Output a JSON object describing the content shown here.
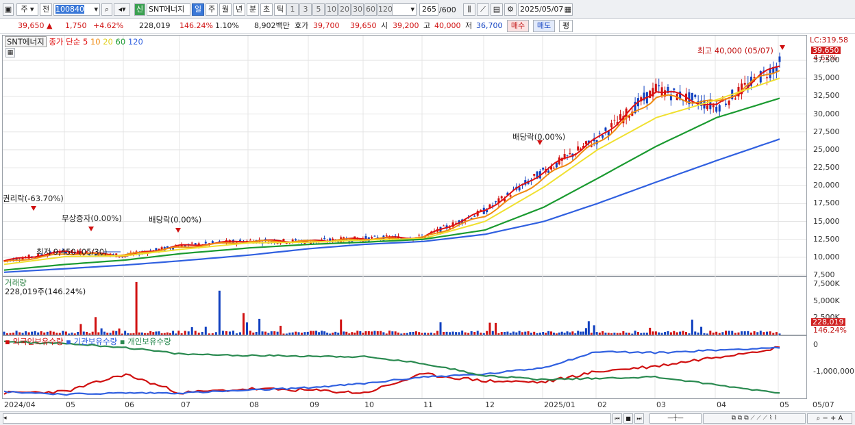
{
  "toolbar": {
    "market": "주",
    "prev": "전",
    "code": "100840",
    "badge": "신",
    "name": "SNT에너지",
    "periods": [
      "일",
      "주",
      "월",
      "년",
      "분",
      "초",
      "틱"
    ],
    "active_period": "일",
    "intervals": [
      "1",
      "3",
      "5",
      "10",
      "20",
      "30",
      "60",
      "120"
    ],
    "count": "265",
    "count_total": "/600",
    "date": "2025/05/07"
  },
  "quote": {
    "price": "39,650 ▲",
    "change": "1,750",
    "change_pct": "+4.62%",
    "volume": "228,019",
    "volume_pct": "146.24%",
    "turnover": "1.10%",
    "amount": "8,902백만",
    "hoga_label": "호가",
    "ask": "39,700",
    "bid": "39,650",
    "open_label": "시",
    "open": "39,200",
    "high_label": "고",
    "high": "40,000",
    "low_label": "저",
    "low": "36,700",
    "buy_btn": "매수",
    "sell_btn": "매도",
    "eval_btn": "평"
  },
  "price_panel": {
    "legend_name": "SNT에너지",
    "legend_ma": "종가 단순 5",
    "ma_periods": [
      "10",
      "20",
      "60",
      "120"
    ],
    "lc_label": "LC:319.58",
    "current_tag": "39,650",
    "pct_tag": "4.62%",
    "annotations": {
      "rights": "권리락(-63.70%)",
      "bonus": "무상증자(0.00%)",
      "div1": "배당락(0.00%)",
      "div2": "배당락(0.00%)",
      "high": "최고 40,000 (05/07)",
      "low": "최저 9,450 (05/30)"
    },
    "y_ticks": [
      "37,500",
      "35,000",
      "32,500",
      "30,000",
      "27,500",
      "25,000",
      "22,500",
      "20,000",
      "17,500",
      "15,000",
      "12,500",
      "10,000",
      "7,500"
    ]
  },
  "volume_panel": {
    "title": "거래량",
    "value": "228,019주(146.24%)",
    "y_ticks": [
      "7,500K",
      "5,000K",
      "2,500K"
    ],
    "tag": "228,019",
    "pct_tag": "146.24%"
  },
  "holdings_panel": {
    "legends": [
      "외국인보유수량",
      "기관보유수량",
      "개인보유수량"
    ],
    "y_ticks": [
      "0",
      "-1,000,000"
    ]
  },
  "x_ticks": [
    "2024/04",
    "05",
    "06",
    "07",
    "08",
    "09",
    "10",
    "11",
    "12",
    "2025/01",
    "02",
    "03",
    "04",
    "05",
    "05/07"
  ],
  "colors": {
    "up": "#d01010",
    "down": "#1040c0",
    "ma5": "#e01010",
    "ma10": "#f08a10",
    "ma20": "#f0e030",
    "ma60": "#1a9a30",
    "ma120": "#3060e0",
    "foreign": "#d01010",
    "inst": "#3060e0",
    "indiv": "#2a8a50"
  },
  "chart_data": {
    "type": "line",
    "title": "SNT에너지",
    "y_range": [
      7500,
      40000
    ],
    "x": [
      "2024/04",
      "05",
      "06",
      "07",
      "08",
      "09",
      "10",
      "11",
      "12",
      "2025/01",
      "02",
      "03",
      "04",
      "05"
    ],
    "series": [
      {
        "name": "종가 단순 5",
        "values": [
          9500,
          10800,
          10200,
          11600,
          12300,
          12200,
          12600,
          12800,
          16500,
          22000,
          26500,
          33500,
          31000,
          37000
        ]
      },
      {
        "name": "10",
        "values": [
          9300,
          10500,
          10300,
          11400,
          12200,
          12200,
          12500,
          12700,
          15800,
          21000,
          26000,
          32500,
          31500,
          36500
        ]
      },
      {
        "name": "20",
        "values": [
          9000,
          10100,
          10200,
          11100,
          12000,
          12100,
          12400,
          12600,
          15000,
          19800,
          25000,
          29500,
          32000,
          35000
        ]
      },
      {
        "name": "60",
        "values": [
          8200,
          9000,
          9600,
          10500,
          11300,
          11800,
          12100,
          12500,
          13800,
          17000,
          21000,
          25500,
          29500,
          32200
        ]
      },
      {
        "name": "120",
        "values": [
          7900,
          8400,
          8900,
          9500,
          10300,
          11200,
          11800,
          12200,
          13200,
          15000,
          17500,
          20500,
          23500,
          26500
        ]
      }
    ],
    "volume_series": {
      "name": "거래량",
      "unit": "K",
      "max_marked": [
        7800,
        6500,
        3200
      ]
    },
    "holdings_series": [
      {
        "name": "외국인보유수량",
        "values": [
          -1800000,
          -1750000,
          -1100000,
          -1800000,
          -1650000,
          -1700000,
          -1800000,
          -1100000,
          -1350000,
          -1400000,
          -1000000,
          -800000,
          -450000,
          -100000
        ]
      },
      {
        "name": "기관보유수량",
        "values": [
          -1750000,
          -1850000,
          -1800000,
          -1800000,
          -1700000,
          -1600000,
          -1450000,
          -1200000,
          -1100000,
          -850000,
          -250000,
          -300000,
          -200000,
          -100000
        ]
      },
      {
        "name": "개인보유수량",
        "values": [
          100000,
          50000,
          -100000,
          -350000,
          -400000,
          -420000,
          -450000,
          -700000,
          -1150000,
          -1300000,
          -1250000,
          -1200000,
          -1500000,
          -1800000
        ]
      }
    ]
  }
}
